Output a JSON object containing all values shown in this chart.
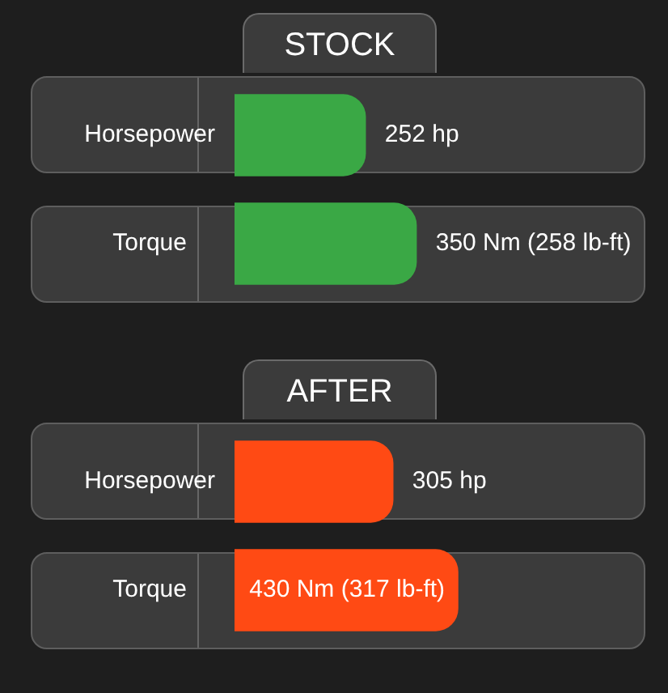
{
  "chart_data": [
    {
      "type": "bar",
      "orientation": "horizontal",
      "title": "STOCK",
      "categories": [
        "Horsepower",
        "Torque"
      ],
      "values": [
        252,
        350
      ],
      "value_labels": [
        "252 hp",
        "350 Nm (258 lb-ft)"
      ],
      "color": "#3aa845"
    },
    {
      "type": "bar",
      "orientation": "horizontal",
      "title": "AFTER",
      "categories": [
        "Horsepower",
        "Torque"
      ],
      "values": [
        305,
        430
      ],
      "value_labels": [
        "305 hp",
        "430 Nm (317 lb-ft)"
      ],
      "color": "#ff4a14"
    }
  ]
}
